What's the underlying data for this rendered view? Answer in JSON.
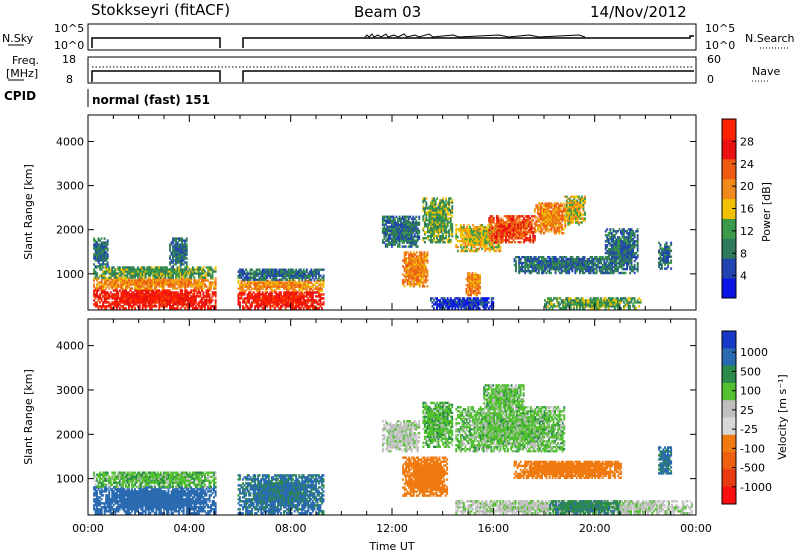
{
  "header": {
    "station": "Stokkseyri (fitACF)",
    "beam": "Beam 03",
    "date": "14/Nov/2012"
  },
  "aux_panel": {
    "nsky_label": "N.Sky",
    "nsky_ticks": [
      "10^5",
      "10^0"
    ],
    "nsearch_label": "N.Search",
    "nsearch_ticks": [
      "10^5",
      "10^0"
    ],
    "freq_label_1": "Freq.",
    "freq_label_2": "[MHz]",
    "freq_ticks": [
      "18",
      "8"
    ],
    "nave_label": "Nave",
    "nave_ticks": [
      "60",
      "0"
    ],
    "cpid_label": "CPID",
    "cpid_value": "normal (fast) 151"
  },
  "colors": {
    "power_scale": [
      "#0a14e6",
      "#2244b0",
      "#2e7a5a",
      "#3a9a4a",
      "#f0c000",
      "#f08a1c",
      "#ee5a10",
      "#e81010",
      "#ff2200"
    ],
    "velocity_scale": [
      "#1838c8",
      "#2a6ab0",
      "#2c8a4a",
      "#52c030",
      "#bfbfbf",
      "#d8d8d8",
      "#f07a10",
      "#ee6010",
      "#e83a10",
      "#ff1010"
    ]
  },
  "chart_data": [
    {
      "type": "heatmap",
      "ylabel": "Slant Range [km]",
      "xlabel": "",
      "x_ticks": [
        "00:00",
        "04:00",
        "08:00",
        "12:00",
        "16:00",
        "20:00",
        "00:00"
      ],
      "y_ticks": [
        "1000",
        "2000",
        "3000",
        "4000"
      ],
      "xlim": [
        0,
        24
      ],
      "ylim": [
        180,
        4600
      ],
      "colorbar_label": "Power [dB]",
      "colorbar_ticks": [
        "4",
        "8",
        "12",
        "16",
        "20",
        "24",
        "28"
      ],
      "colorbar_range": [
        0,
        32
      ],
      "regions": [
        {
          "t0": 0.2,
          "t1": 5.0,
          "r0": 200,
          "r1": 650,
          "level": 28
        },
        {
          "t0": 0.2,
          "t1": 5.0,
          "r0": 650,
          "r1": 900,
          "level": 20
        },
        {
          "t0": 0.2,
          "t1": 5.0,
          "r0": 900,
          "r1": 1150,
          "level": 12
        },
        {
          "t0": 0.2,
          "t1": 0.8,
          "r0": 1150,
          "r1": 1800,
          "level": 8
        },
        {
          "t0": 3.2,
          "t1": 3.9,
          "r0": 1150,
          "r1": 1800,
          "level": 8
        },
        {
          "t0": 5.9,
          "t1": 9.3,
          "r0": 200,
          "r1": 600,
          "level": 28
        },
        {
          "t0": 5.9,
          "t1": 9.3,
          "r0": 600,
          "r1": 850,
          "level": 20
        },
        {
          "t0": 5.9,
          "t1": 9.3,
          "r0": 850,
          "r1": 1100,
          "level": 8
        },
        {
          "t0": 11.6,
          "t1": 13.1,
          "r0": 1600,
          "r1": 2300,
          "level": 8
        },
        {
          "t0": 12.4,
          "t1": 13.4,
          "r0": 700,
          "r1": 1500,
          "level": 20
        },
        {
          "t0": 13.2,
          "t1": 14.4,
          "r0": 1700,
          "r1": 2700,
          "level": 12
        },
        {
          "t0": 14.5,
          "t1": 16.3,
          "r0": 1500,
          "r1": 2100,
          "level": 16
        },
        {
          "t0": 14.9,
          "t1": 15.5,
          "r0": 500,
          "r1": 1000,
          "level": 20
        },
        {
          "t0": 15.8,
          "t1": 17.6,
          "r0": 1700,
          "r1": 2300,
          "level": 24
        },
        {
          "t0": 17.6,
          "t1": 18.8,
          "r0": 1900,
          "r1": 2600,
          "level": 20
        },
        {
          "t0": 18.8,
          "t1": 19.6,
          "r0": 2100,
          "r1": 2750,
          "level": 16
        },
        {
          "t0": 16.8,
          "t1": 20.8,
          "r0": 1000,
          "r1": 1400,
          "level": 8
        },
        {
          "t0": 20.4,
          "t1": 21.7,
          "r0": 1000,
          "r1": 2000,
          "level": 8
        },
        {
          "t0": 22.5,
          "t1": 23.0,
          "r0": 1100,
          "r1": 1700,
          "level": 8
        },
        {
          "t0": 13.5,
          "t1": 16.0,
          "r0": 200,
          "r1": 450,
          "level": 4
        },
        {
          "t0": 18.0,
          "t1": 21.8,
          "r0": 200,
          "r1": 450,
          "level": 12
        }
      ]
    },
    {
      "type": "heatmap",
      "ylabel": "Slant Range [km]",
      "xlabel": "Time UT",
      "x_ticks": [
        "00:00",
        "04:00",
        "08:00",
        "12:00",
        "16:00",
        "20:00",
        "00:00"
      ],
      "y_ticks": [
        "1000",
        "2000",
        "3000",
        "4000"
      ],
      "xlim": [
        0,
        24
      ],
      "ylim": [
        180,
        4600
      ],
      "colorbar_label": "Velocity [m s⁻¹]",
      "colorbar_ticks": [
        "1000",
        "500",
        "100",
        "25",
        "-25",
        "-100",
        "-500",
        "-1000"
      ],
      "colorbar_range": [
        -1000,
        1000
      ],
      "regions": [
        {
          "t0": 0.2,
          "t1": 5.0,
          "r0": 200,
          "r1": 800,
          "value": 300
        },
        {
          "t0": 0.2,
          "t1": 5.0,
          "r0": 800,
          "r1": 1150,
          "value": 15
        },
        {
          "t0": 5.9,
          "t1": 9.3,
          "r0": 200,
          "r1": 1100,
          "value": 120
        },
        {
          "t0": 11.6,
          "t1": 13.1,
          "r0": 1600,
          "r1": 2300,
          "value": -10
        },
        {
          "t0": 12.4,
          "t1": 14.2,
          "r0": 600,
          "r1": 1500,
          "value": -300
        },
        {
          "t0": 13.2,
          "t1": 14.4,
          "r0": 1700,
          "r1": 2700,
          "value": 15
        },
        {
          "t0": 14.5,
          "t1": 18.8,
          "r0": 1600,
          "r1": 2600,
          "value": 10
        },
        {
          "t0": 15.6,
          "t1": 17.2,
          "r0": 2500,
          "r1": 3100,
          "value": 10
        },
        {
          "t0": 16.8,
          "t1": 21.0,
          "r0": 1000,
          "r1": 1400,
          "value": -200
        },
        {
          "t0": 14.5,
          "t1": 23.8,
          "r0": 200,
          "r1": 500,
          "value": -10
        },
        {
          "t0": 18.2,
          "t1": 21.0,
          "r0": 200,
          "r1": 500,
          "value": 80
        },
        {
          "t0": 22.5,
          "t1": 23.0,
          "r0": 1100,
          "r1": 1700,
          "value": 120
        }
      ]
    }
  ]
}
